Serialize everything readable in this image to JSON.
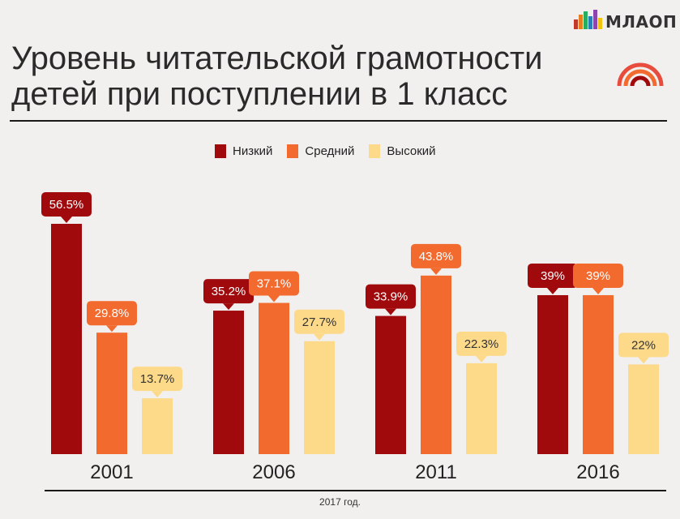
{
  "header": {
    "title_line1": "Уровень читательской грамотности",
    "title_line2": "детей при поступлении в 1 класс",
    "logo_text": "МЛАОП",
    "footnote": "2017 год."
  },
  "colors": {
    "low": "#a10a0d",
    "mid": "#f26a2e",
    "high": "#fdd98a"
  },
  "chart_data": {
    "type": "bar",
    "title": "Уровень читательской грамотности детей при поступлении в 1 класс",
    "categories": [
      "2001",
      "2006",
      "2011",
      "2016"
    ],
    "series": [
      {
        "name": "Низкий",
        "values": [
          56.5,
          35.2,
          33.9,
          39
        ],
        "labels": [
          "56.5%",
          "35.2%",
          "33.9%",
          "39%"
        ]
      },
      {
        "name": "Средний",
        "values": [
          29.8,
          37.1,
          43.8,
          39
        ],
        "labels": [
          "29.8%",
          "37.1%",
          "43.8%",
          "39%"
        ]
      },
      {
        "name": "Высокий",
        "values": [
          13.7,
          27.7,
          22.3,
          22
        ],
        "labels": [
          "13.7%",
          "27.7%",
          "22.3%",
          "22%"
        ]
      }
    ],
    "legend_position": "top-center",
    "grid": false
  }
}
